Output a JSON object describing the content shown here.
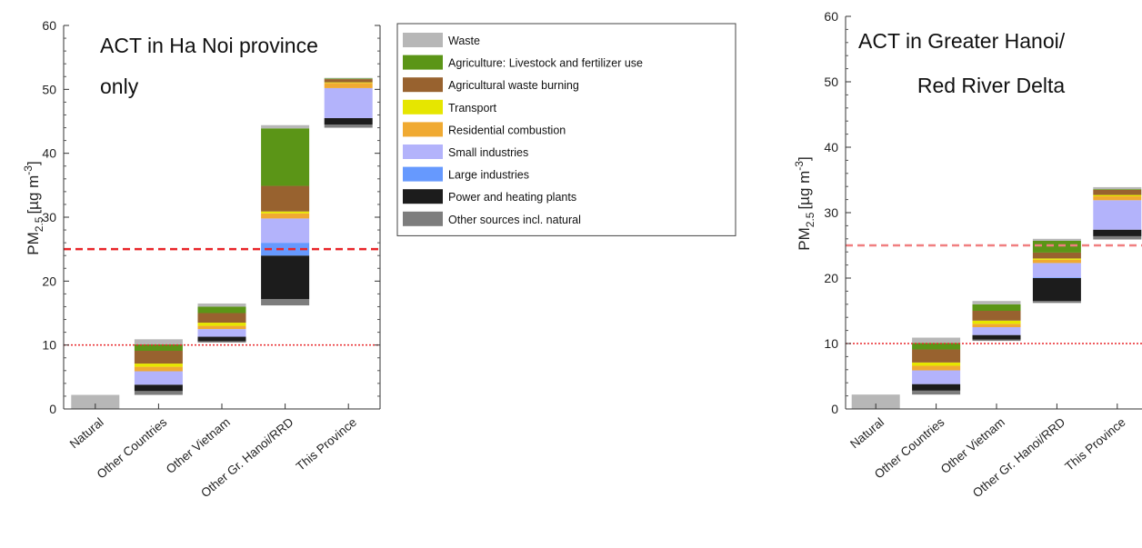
{
  "chart_data": [
    {
      "type": "bar",
      "subtype": "stacked-waterfall",
      "annotation": [
        "ACT in Ha Noi province",
        "only"
      ],
      "ylabel": "PM",
      "ylabel_sub": "2.5",
      "ylabel_unit": "[µg m",
      "ylabel_sup": "-3",
      "ylabel_end": "]",
      "ylim": [
        0,
        60
      ],
      "yticks": [
        0,
        10,
        20,
        30,
        40,
        50,
        60
      ],
      "categories": [
        "Natural",
        "Other Countries",
        "Other Vietnam",
        "Other Gr. Hanoi/RRD",
        "This Province"
      ],
      "bars": [
        {
          "base": 0,
          "segments": [
            2.2,
            0,
            0,
            0,
            0,
            0,
            0,
            0,
            0
          ]
        },
        {
          "base": 2.2,
          "segments": [
            0.8,
            1.0,
            2.0,
            0.5,
            0.7,
            2.1,
            0,
            1.0,
            0.6
          ]
        },
        {
          "base": 10.4,
          "segments": [
            0.5,
            1.0,
            1.5,
            0.5,
            0.5,
            1.2,
            0,
            0.7,
            0.2
          ]
        },
        {
          "base": 16.2,
          "segments": [
            0.5,
            9.0,
            4.0,
            0.3,
            0.8,
            3.8,
            2.0,
            6.8,
            1.0
          ]
        },
        {
          "base": 44.0,
          "segments": [
            0.1,
            0.1,
            0.5,
            0.1,
            0.8,
            4.7,
            0,
            1.0,
            0.5
          ]
        }
      ],
      "reference_lines": [
        {
          "y": 25,
          "style": "dashed",
          "color": "#e8262a"
        },
        {
          "y": 10,
          "style": "dotted",
          "color": "#e8262a"
        }
      ],
      "legend_position": "right"
    },
    {
      "type": "bar",
      "subtype": "stacked-waterfall",
      "annotation": [
        "ACT in Greater Hanoi/",
        "Red River Delta"
      ],
      "ylabel": "PM",
      "ylabel_sub": "2.5",
      "ylabel_unit": "[µg m",
      "ylabel_sup": "-3",
      "ylabel_end": "]",
      "ylim": [
        0,
        60
      ],
      "yticks": [
        0,
        10,
        20,
        30,
        40,
        50,
        60
      ],
      "categories": [
        "Natural",
        "Other Countries",
        "Other Vietnam",
        "Other Gr. Hanoi/RRD",
        "This Province"
      ],
      "bars": [
        {
          "base": 0,
          "segments": [
            2.2,
            0,
            0,
            0,
            0,
            0,
            0,
            0,
            0
          ]
        },
        {
          "base": 2.2,
          "segments": [
            0.8,
            1.0,
            2.0,
            0.5,
            0.7,
            2.1,
            0,
            1.0,
            0.6
          ]
        },
        {
          "base": 10.4,
          "segments": [
            0.5,
            1.0,
            1.5,
            0.5,
            0.5,
            1.2,
            0,
            0.7,
            0.2
          ]
        },
        {
          "base": 16.2,
          "segments": [
            0.3,
            1.8,
            0.9,
            0.2,
            0.5,
            2.2,
            0.1,
            3.5,
            0.3
          ]
        },
        {
          "base": 25.9,
          "segments": [
            0.3,
            0.1,
            0.8,
            0.2,
            0.6,
            4.5,
            0,
            1.0,
            0.5
          ]
        }
      ],
      "reference_lines": [
        {
          "y": 25,
          "style": "dashed",
          "color": "#f07f80"
        },
        {
          "y": 10,
          "style": "dotted",
          "color": "#e8262a"
        }
      ]
    }
  ],
  "legend": {
    "items": [
      {
        "label": "Waste",
        "color": "#b7b7b7"
      },
      {
        "label": "Agriculture: Livestock and fertilizer use",
        "color": "#5b9517"
      },
      {
        "label": "Agricultural waste burning",
        "color": "#98622f"
      },
      {
        "label": "Transport",
        "color": "#e6e600"
      },
      {
        "label": "Residential combustion",
        "color": "#f0aa32"
      },
      {
        "label": "Small industries",
        "color": "#b3b3fb"
      },
      {
        "label": "Large industries",
        "color": "#6699fe"
      },
      {
        "label": "Power and heating plants",
        "color": "#1c1c1c"
      },
      {
        "label": "Other sources incl. natural",
        "color": "#7d7d7d"
      }
    ]
  },
  "stack_order_bottom_to_top": [
    8,
    7,
    6,
    5,
    4,
    3,
    2,
    1,
    0
  ]
}
